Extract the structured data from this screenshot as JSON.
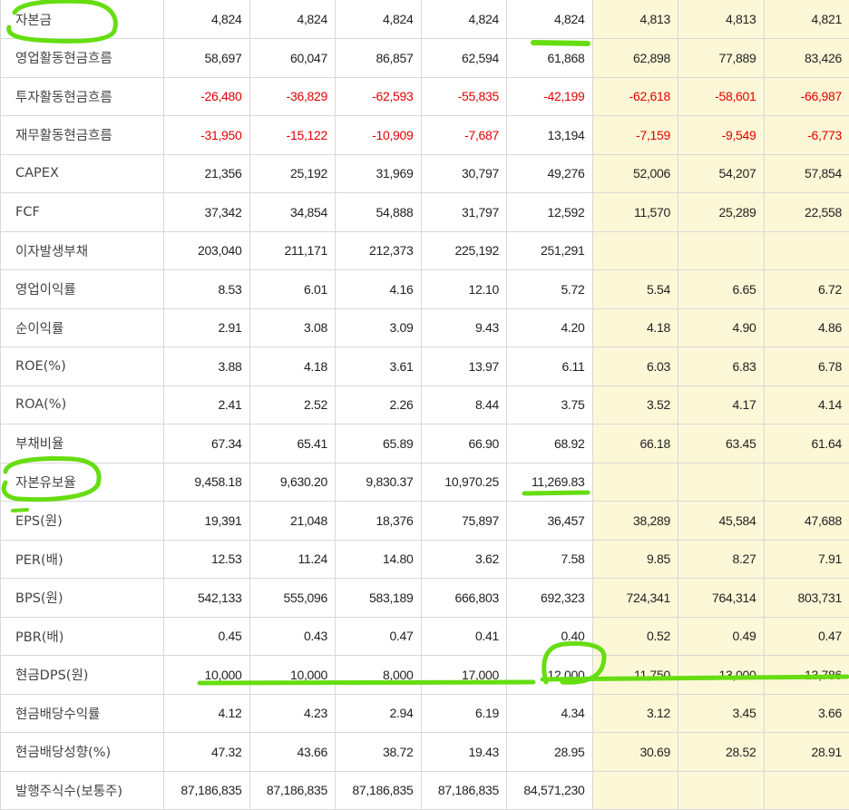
{
  "colors": {
    "negative": "#e00000",
    "estimate_bg": "#fcf7d6",
    "highlighter": "#66dd11"
  },
  "rows": [
    {
      "label": "자본금",
      "values": [
        "4,824",
        "4,824",
        "4,824",
        "4,824",
        "4,824",
        "4,813",
        "4,813",
        "4,821"
      ]
    },
    {
      "label": "영업활동현금흐름",
      "values": [
        "58,697",
        "60,047",
        "86,857",
        "62,594",
        "61,868",
        "62,898",
        "77,889",
        "83,426"
      ]
    },
    {
      "label": "투자활동현금흐름",
      "values": [
        "-26,480",
        "-36,829",
        "-62,593",
        "-55,835",
        "-42,199",
        "-62,618",
        "-58,601",
        "-66,987"
      ]
    },
    {
      "label": "재무활동현금흐름",
      "values": [
        "-31,950",
        "-15,122",
        "-10,909",
        "-7,687",
        "13,194",
        "-7,159",
        "-9,549",
        "-6,773"
      ]
    },
    {
      "label": "CAPEX",
      "values": [
        "21,356",
        "25,192",
        "31,969",
        "30,797",
        "49,276",
        "52,006",
        "54,207",
        "57,854"
      ]
    },
    {
      "label": "FCF",
      "values": [
        "37,342",
        "34,854",
        "54,888",
        "31,797",
        "12,592",
        "11,570",
        "25,289",
        "22,558"
      ]
    },
    {
      "label": "이자발생부채",
      "values": [
        "203,040",
        "211,171",
        "212,373",
        "225,192",
        "251,291",
        "",
        "",
        ""
      ]
    },
    {
      "label": "영업이익률",
      "values": [
        "8.53",
        "6.01",
        "4.16",
        "12.10",
        "5.72",
        "5.54",
        "6.65",
        "6.72"
      ]
    },
    {
      "label": "순이익률",
      "values": [
        "2.91",
        "3.08",
        "3.09",
        "9.43",
        "4.20",
        "4.18",
        "4.90",
        "4.86"
      ]
    },
    {
      "label": "ROE(%)",
      "values": [
        "3.88",
        "4.18",
        "3.61",
        "13.97",
        "6.11",
        "6.03",
        "6.83",
        "6.78"
      ]
    },
    {
      "label": "ROA(%)",
      "values": [
        "2.41",
        "2.52",
        "2.26",
        "8.44",
        "3.75",
        "3.52",
        "4.17",
        "4.14"
      ]
    },
    {
      "label": "부채비율",
      "values": [
        "67.34",
        "65.41",
        "65.89",
        "66.90",
        "68.92",
        "66.18",
        "63.45",
        "61.64"
      ]
    },
    {
      "label": "자본유보율",
      "values": [
        "9,458.18",
        "9,630.20",
        "9,830.37",
        "10,970.25",
        "11,269.83",
        "",
        "",
        ""
      ]
    },
    {
      "label": "EPS(원)",
      "values": [
        "19,391",
        "21,048",
        "18,376",
        "75,897",
        "36,457",
        "38,289",
        "45,584",
        "47,688"
      ]
    },
    {
      "label": "PER(배)",
      "values": [
        "12.53",
        "11.24",
        "14.80",
        "3.62",
        "7.58",
        "9.85",
        "8.27",
        "7.91"
      ]
    },
    {
      "label": "BPS(원)",
      "values": [
        "542,133",
        "555,096",
        "583,189",
        "666,803",
        "692,323",
        "724,341",
        "764,314",
        "803,731"
      ]
    },
    {
      "label": "PBR(배)",
      "values": [
        "0.45",
        "0.43",
        "0.47",
        "0.41",
        "0.40",
        "0.52",
        "0.49",
        "0.47"
      ]
    },
    {
      "label": "현금DPS(원)",
      "values": [
        "10,000",
        "10,000",
        "8,000",
        "17,000",
        "12,000",
        "11,750",
        "13,000",
        "13,786"
      ]
    },
    {
      "label": "현금배당수익률",
      "values": [
        "4.12",
        "4.23",
        "2.94",
        "6.19",
        "4.34",
        "3.12",
        "3.45",
        "3.66"
      ]
    },
    {
      "label": "현금배당성향(%)",
      "values": [
        "47.32",
        "43.66",
        "38.72",
        "19.43",
        "28.95",
        "30.69",
        "28.52",
        "28.91"
      ]
    },
    {
      "label": "발행주식수(보통주)",
      "values": [
        "87,186,835",
        "87,186,835",
        "87,186,835",
        "87,186,835",
        "84,571,230",
        "",
        "",
        ""
      ]
    }
  ]
}
